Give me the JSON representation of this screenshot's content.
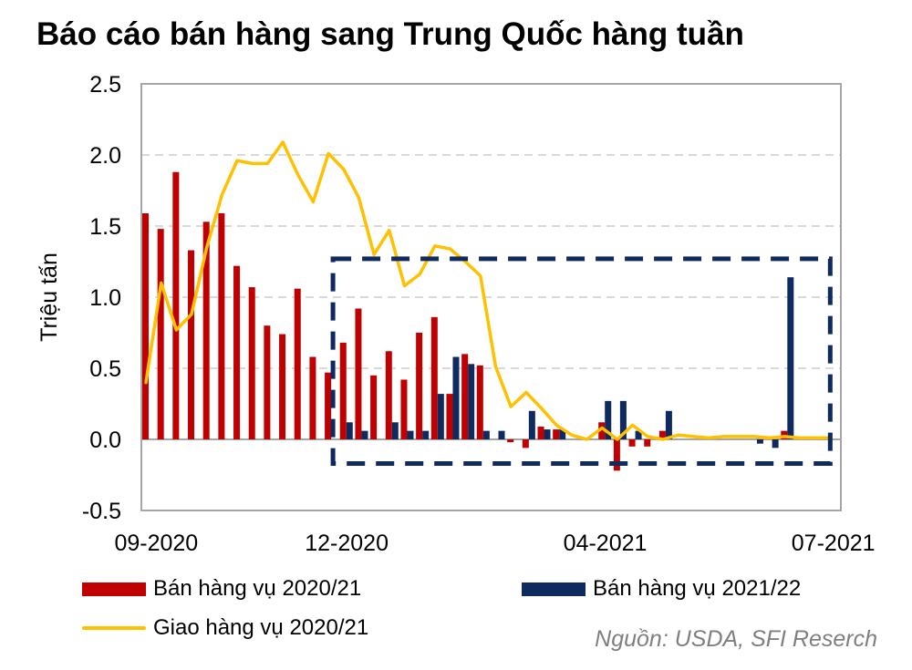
{
  "source": "Nguồn: USDA, SFI Reserch",
  "colors": {
    "sales_2020_21": "#c00000",
    "sales_2021_22": "#0f2a5f",
    "shipments": "#ffc000",
    "grid": "#d9d9d9",
    "highlight_box": "#0f2a5f"
  },
  "chart_data": {
    "type": "bar",
    "title": "Báo cáo bán hàng sang Trung Quốc hàng tuần",
    "ylabel": "Triệu tấn",
    "xlabel": "",
    "ylim": [
      -0.5,
      2.5
    ],
    "yticks": [
      "2.5",
      "2.0",
      "1.5",
      "1.0",
      "0.5",
      "0.0",
      "-0.5"
    ],
    "ytick_values": [
      2.5,
      2.0,
      1.5,
      1.0,
      0.5,
      0.0,
      -0.5
    ],
    "xtick_labels": [
      "09-2020",
      "12-2020",
      "04-2021",
      "07-2021"
    ],
    "xtick_week_index": [
      0,
      13,
      30,
      45
    ],
    "weeks": 46,
    "grid": "horizontal dashed",
    "legend_position": "bottom",
    "series": [
      {
        "name": "Bán hàng vụ  2020/21",
        "kind": "bar",
        "values": [
          1.59,
          1.48,
          1.88,
          1.33,
          1.53,
          1.59,
          1.22,
          1.07,
          0.8,
          0.74,
          1.06,
          0.58,
          0.47,
          0.68,
          0.92,
          0.45,
          0.62,
          0.42,
          0.75,
          0.86,
          0.32,
          0.6,
          0.52,
          0.0,
          -0.02,
          -0.06,
          0.09,
          0.07,
          0.0,
          0.0,
          0.12,
          -0.22,
          -0.05,
          -0.05,
          0.06,
          0.0,
          0.0,
          0.0,
          0.0,
          0.0,
          0.0,
          0.0,
          0.06,
          0.0,
          0.0,
          0.0
        ]
      },
      {
        "name": "Bán hàng vụ 2021/22",
        "kind": "bar",
        "values": [
          0,
          0,
          0,
          0,
          0,
          0,
          0,
          0,
          0,
          0,
          0,
          0,
          0,
          0.12,
          0.06,
          0.0,
          0.12,
          0.06,
          0.06,
          0.32,
          0.58,
          0.53,
          0.06,
          0.06,
          0.0,
          0.2,
          0.07,
          0.07,
          0.0,
          0.0,
          0.27,
          0.27,
          0.06,
          0.0,
          0.2,
          0.0,
          0.0,
          0.0,
          0.0,
          0.0,
          -0.03,
          -0.06,
          1.14,
          0.0,
          0.0,
          0.0
        ]
      },
      {
        "name": "Giao hàng vụ 2020/21",
        "kind": "line",
        "values": [
          0.4,
          1.1,
          0.77,
          0.88,
          1.35,
          1.72,
          1.96,
          1.94,
          1.94,
          2.09,
          1.86,
          1.67,
          2.01,
          1.9,
          1.7,
          1.3,
          1.47,
          1.08,
          1.16,
          1.36,
          1.34,
          1.25,
          1.15,
          0.51,
          0.23,
          0.33,
          0.22,
          0.1,
          0.03,
          0.0,
          0.08,
          0.0,
          0.1,
          0.02,
          0.0,
          0.03,
          0.02,
          0.01,
          0.02,
          0.02,
          0.02,
          0.01,
          0.02,
          0.01,
          0.01,
          0.01
        ]
      }
    ],
    "highlight_box": {
      "from_week": 12.6,
      "to_week": 45.3,
      "ymin": -0.17,
      "ymax": 1.27
    }
  }
}
